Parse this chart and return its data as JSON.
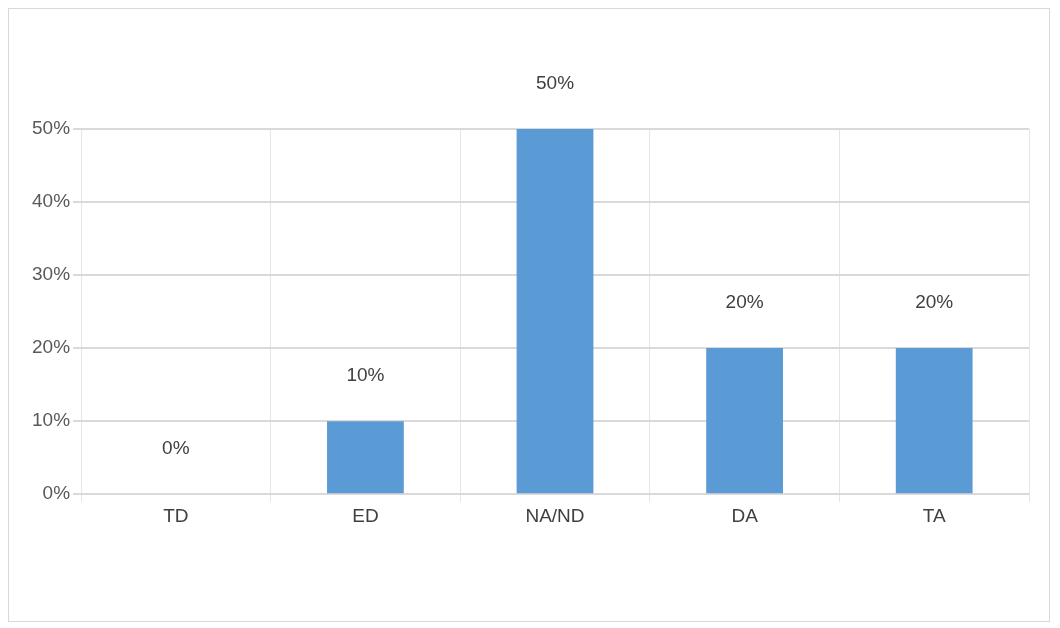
{
  "chart_data": {
    "type": "bar",
    "categories": [
      "TD",
      "ED",
      "NA/ND",
      "DA",
      "TA"
    ],
    "values": [
      0,
      10,
      50,
      20,
      20
    ],
    "value_labels": [
      "0%",
      "10%",
      "50%",
      "20%",
      "20%"
    ],
    "color": "#5b9bd5",
    "ylim": [
      0,
      50
    ],
    "yticks": [
      {
        "value": 0,
        "label": "0%"
      },
      {
        "value": 10,
        "label": "10%"
      },
      {
        "value": 20,
        "label": "20%"
      },
      {
        "value": 30,
        "label": "30%"
      },
      {
        "value": 40,
        "label": "40%"
      },
      {
        "value": 50,
        "label": "50%"
      }
    ],
    "grid": true
  }
}
